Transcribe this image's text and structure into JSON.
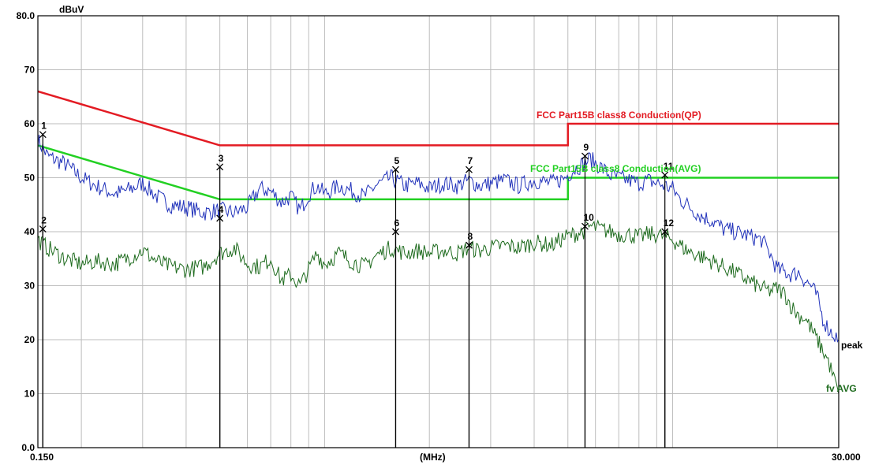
{
  "chart_data": {
    "type": "line",
    "title": "",
    "ylabel": "dBuV",
    "xlabel": "(MHz)",
    "x_scale": "log",
    "xlim": [
      0.15,
      30.0
    ],
    "ylim": [
      0.0,
      80.0
    ],
    "y_ticks": [
      0,
      10,
      20,
      30,
      40,
      50,
      60,
      70,
      80
    ],
    "y_tick_labels": [
      "0.0",
      "10",
      "20",
      "30",
      "40",
      "50",
      "60",
      "70",
      "80.0"
    ],
    "x_tick_labels": [
      "0.150",
      "30.000"
    ],
    "grid": true,
    "limit_lines": [
      {
        "name": "FCC  Part15B class8 Conduction(QP)",
        "color": "#e31b23",
        "points": [
          [
            0.15,
            66
          ],
          [
            0.5,
            56
          ],
          [
            5.0,
            56
          ],
          [
            5.0,
            60
          ],
          [
            30.0,
            60
          ]
        ]
      },
      {
        "name": "FCC  Part15B class8 Conduction(AVG)",
        "color": "#22d022",
        "points": [
          [
            0.15,
            56
          ],
          [
            0.5,
            46
          ],
          [
            5.0,
            46
          ],
          [
            5.0,
            50
          ],
          [
            30.0,
            50
          ]
        ]
      }
    ],
    "series": [
      {
        "name": "peak",
        "color": "#2233bb",
        "points": [
          [
            0.15,
            57
          ],
          [
            0.16,
            54
          ],
          [
            0.18,
            52.5
          ],
          [
            0.2,
            50
          ],
          [
            0.22,
            48.5
          ],
          [
            0.25,
            47
          ],
          [
            0.28,
            48
          ],
          [
            0.3,
            49
          ],
          [
            0.33,
            46.5
          ],
          [
            0.36,
            45
          ],
          [
            0.4,
            44.5
          ],
          [
            0.45,
            43.5
          ],
          [
            0.5,
            44
          ],
          [
            0.55,
            43.5
          ],
          [
            0.6,
            44.5
          ],
          [
            0.65,
            48
          ],
          [
            0.7,
            47.5
          ],
          [
            0.75,
            45.5
          ],
          [
            0.8,
            46.5
          ],
          [
            0.85,
            44
          ],
          [
            0.9,
            47
          ],
          [
            0.95,
            48.5
          ],
          [
            1.0,
            47
          ],
          [
            1.1,
            48.5
          ],
          [
            1.2,
            47.5
          ],
          [
            1.3,
            46.5
          ],
          [
            1.4,
            48.5
          ],
          [
            1.55,
            50
          ],
          [
            1.7,
            48.5
          ],
          [
            1.85,
            49
          ],
          [
            2.0,
            48
          ],
          [
            2.2,
            49
          ],
          [
            2.4,
            48.5
          ],
          [
            2.6,
            49.5
          ],
          [
            2.8,
            48.5
          ],
          [
            3.0,
            49
          ],
          [
            3.3,
            49.5
          ],
          [
            3.6,
            48.5
          ],
          [
            4.0,
            49.5
          ],
          [
            4.5,
            49
          ],
          [
            4.9,
            50
          ],
          [
            5.2,
            51.5
          ],
          [
            5.5,
            52.5
          ],
          [
            5.8,
            53.5
          ],
          [
            6.2,
            52
          ],
          [
            6.6,
            50.5
          ],
          [
            7.0,
            50
          ],
          [
            7.5,
            49.5
          ],
          [
            8.0,
            49
          ],
          [
            8.5,
            49.5
          ],
          [
            9.0,
            49
          ],
          [
            9.5,
            48.5
          ],
          [
            10.0,
            48
          ],
          [
            10.5,
            46
          ],
          [
            11.0,
            45
          ],
          [
            12.0,
            43
          ],
          [
            13.0,
            42
          ],
          [
            14.0,
            40.5
          ],
          [
            15.0,
            40
          ],
          [
            16.0,
            39.5
          ],
          [
            17.0,
            39
          ],
          [
            18.0,
            38.5
          ],
          [
            19.0,
            36
          ],
          [
            20.0,
            33
          ],
          [
            21.0,
            32.5
          ],
          [
            22.0,
            32
          ],
          [
            23.0,
            32.5
          ],
          [
            24.0,
            31
          ],
          [
            25.0,
            30
          ],
          [
            26.0,
            28
          ],
          [
            27.0,
            24
          ],
          [
            28.0,
            22
          ],
          [
            29.0,
            21
          ],
          [
            30.0,
            20
          ]
        ]
      },
      {
        "name": "AVG",
        "color": "#1e6b1e",
        "points": [
          [
            0.15,
            38.5
          ],
          [
            0.16,
            37
          ],
          [
            0.18,
            35
          ],
          [
            0.2,
            34
          ],
          [
            0.22,
            34.5
          ],
          [
            0.25,
            34
          ],
          [
            0.28,
            35.5
          ],
          [
            0.3,
            36.5
          ],
          [
            0.33,
            34.5
          ],
          [
            0.36,
            33.5
          ],
          [
            0.4,
            33
          ],
          [
            0.45,
            33.5
          ],
          [
            0.5,
            36
          ],
          [
            0.55,
            37
          ],
          [
            0.6,
            34
          ],
          [
            0.65,
            33.5
          ],
          [
            0.7,
            35
          ],
          [
            0.75,
            31
          ],
          [
            0.8,
            32
          ],
          [
            0.85,
            30
          ],
          [
            0.9,
            33
          ],
          [
            0.95,
            36
          ],
          [
            1.0,
            34
          ],
          [
            1.1,
            36
          ],
          [
            1.2,
            34.5
          ],
          [
            1.3,
            33.5
          ],
          [
            1.4,
            35.5
          ],
          [
            1.55,
            37
          ],
          [
            1.7,
            36
          ],
          [
            1.85,
            36.5
          ],
          [
            2.0,
            36
          ],
          [
            2.2,
            36.5
          ],
          [
            2.4,
            36
          ],
          [
            2.6,
            37
          ],
          [
            2.8,
            36.5
          ],
          [
            3.0,
            37
          ],
          [
            3.3,
            37.5
          ],
          [
            3.6,
            37
          ],
          [
            4.0,
            38
          ],
          [
            4.5,
            37.5
          ],
          [
            4.9,
            39
          ],
          [
            5.2,
            39.5
          ],
          [
            5.5,
            40
          ],
          [
            5.8,
            41
          ],
          [
            6.2,
            40.5
          ],
          [
            6.6,
            40
          ],
          [
            7.0,
            39.5
          ],
          [
            7.5,
            39.5
          ],
          [
            8.0,
            39
          ],
          [
            8.5,
            39.5
          ],
          [
            9.0,
            39.5
          ],
          [
            9.5,
            39
          ],
          [
            10.0,
            38.5
          ],
          [
            10.5,
            37.5
          ],
          [
            11.0,
            36.5
          ],
          [
            12.0,
            35.5
          ],
          [
            13.0,
            34.5
          ],
          [
            14.0,
            33.5
          ],
          [
            15.0,
            32.5
          ],
          [
            16.0,
            31.5
          ],
          [
            17.0,
            30.5
          ],
          [
            18.0,
            29.5
          ],
          [
            19.0,
            29
          ],
          [
            20.0,
            29.5
          ],
          [
            21.0,
            28.5
          ],
          [
            22.0,
            26
          ],
          [
            23.0,
            24.5
          ],
          [
            24.0,
            24
          ],
          [
            25.0,
            22
          ],
          [
            26.0,
            20
          ],
          [
            27.0,
            18
          ],
          [
            28.0,
            16
          ],
          [
            29.0,
            13
          ],
          [
            30.0,
            10
          ]
        ]
      }
    ],
    "series_labels": {
      "peak": "peak",
      "avg": "fv AVG"
    },
    "markers": [
      {
        "label": "1",
        "freq": 0.155,
        "level": 58
      },
      {
        "label": "2",
        "freq": 0.155,
        "level": 40.5
      },
      {
        "label": "3",
        "freq": 0.5,
        "level": 52
      },
      {
        "label": "4",
        "freq": 0.5,
        "level": 42.5
      },
      {
        "label": "5",
        "freq": 1.6,
        "level": 51.5
      },
      {
        "label": "6",
        "freq": 1.6,
        "level": 40
      },
      {
        "label": "7",
        "freq": 2.6,
        "level": 51.5
      },
      {
        "label": "8",
        "freq": 2.6,
        "level": 37.5
      },
      {
        "label": "9",
        "freq": 5.6,
        "level": 54
      },
      {
        "label": "10",
        "freq": 5.6,
        "level": 41
      },
      {
        "label": "11",
        "freq": 9.5,
        "level": 50.5
      },
      {
        "label": "12",
        "freq": 9.5,
        "level": 40
      }
    ]
  }
}
